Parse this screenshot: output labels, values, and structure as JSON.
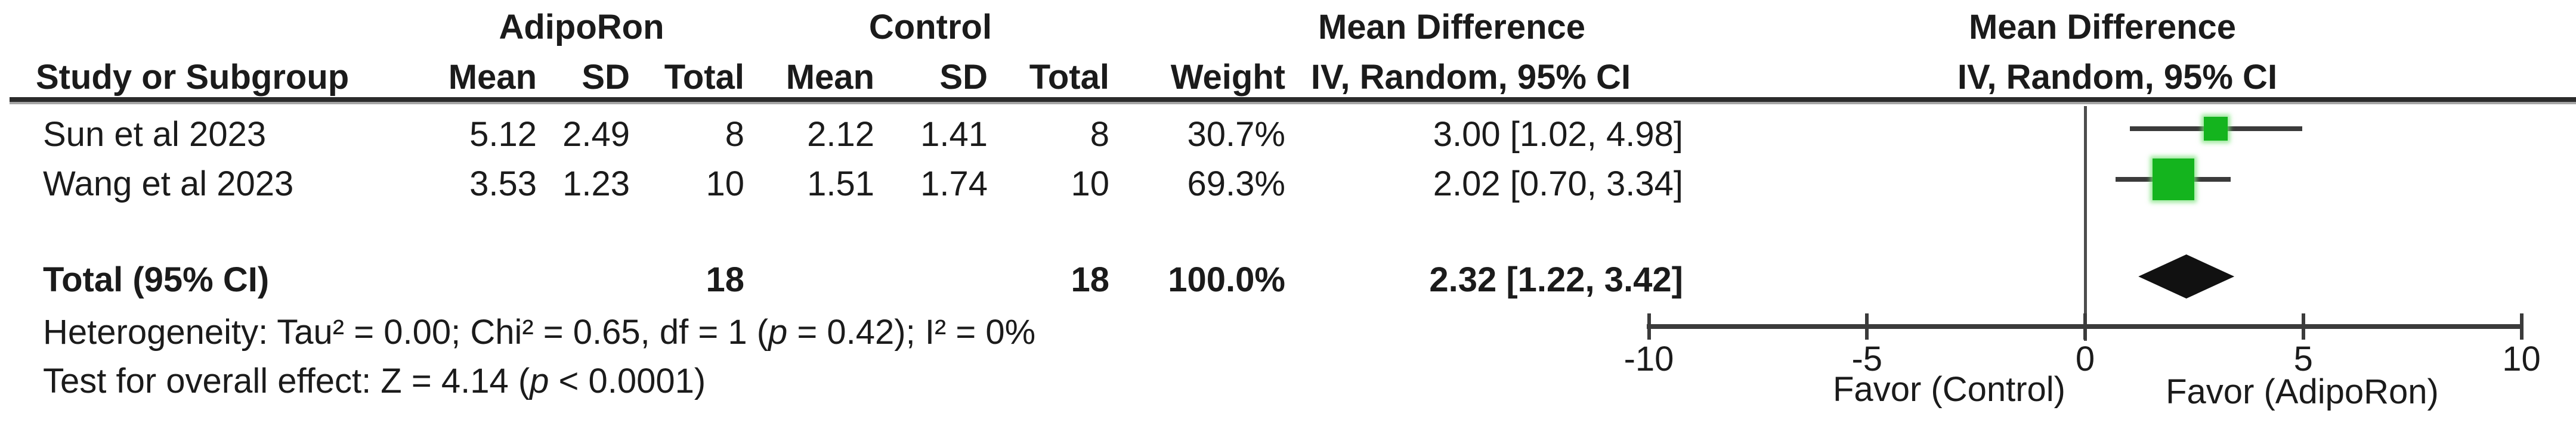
{
  "header": {
    "group1": "AdipoRon",
    "group2": "Control",
    "effect": "Mean Difference",
    "effect_sub": "IV, Random, 95% CI",
    "study": "Study or Subgroup",
    "mean": "Mean",
    "sd": "SD",
    "total": "Total",
    "weight": "Weight"
  },
  "rows": [
    {
      "study": "Sun et al 2023",
      "mean1": "5.12",
      "sd1": "2.49",
      "total1": "8",
      "mean2": "2.12",
      "sd2": "1.41",
      "total2": "8",
      "weight": "30.7%",
      "ci": "3.00 [1.02, 4.98]"
    },
    {
      "study": "Wang et al 2023",
      "mean1": "3.53",
      "sd1": "1.23",
      "total1": "10",
      "mean2": "1.51",
      "sd2": "1.74",
      "total2": "10",
      "weight": "69.3%",
      "ci": "2.02 [0.70, 3.34]"
    }
  ],
  "total_row": {
    "label": "Total (95% CI)",
    "total1": "18",
    "total2": "18",
    "weight": "100.0%",
    "ci": "2.32 [1.22, 3.42]"
  },
  "stats": {
    "het": [
      "Heterogeneity: Tau² = 0.00; Chi² = 0.65, df = 1 (",
      "p",
      " = 0.42); I² = 0%"
    ],
    "overall": [
      "Test for overall effect: Z = 4.14 (",
      "p",
      " < 0.0001)"
    ]
  },
  "plot": {
    "favor_left": "Favor (Control)",
    "favor_right": "Favor (AdipoRon)",
    "green": "#14b41e",
    "line_color": "#3b3b3b",
    "diamond_color": "#111111"
  },
  "chart_data": {
    "type": "forest",
    "effect_measure": "Mean Difference, IV, Random, 95% CI",
    "x_axis": {
      "min": -10,
      "max": 10,
      "ticks": [
        -10,
        -5,
        0,
        5,
        10
      ]
    },
    "studies": [
      {
        "name": "Sun et al 2023",
        "md": 3.0,
        "ci_low": 1.02,
        "ci_high": 4.98,
        "weight_pct": 30.7
      },
      {
        "name": "Wang et al 2023",
        "md": 2.02,
        "ci_low": 0.7,
        "ci_high": 3.34,
        "weight_pct": 69.3
      }
    ],
    "total": {
      "md": 2.32,
      "ci_low": 1.22,
      "ci_high": 3.42,
      "weight_pct": 100.0
    },
    "heterogeneity": {
      "tau2": 0.0,
      "chi2": 0.65,
      "df": 1,
      "p": 0.42,
      "i2_pct": 0
    },
    "overall_effect": {
      "z": 4.14,
      "p": "< 0.0001"
    }
  }
}
